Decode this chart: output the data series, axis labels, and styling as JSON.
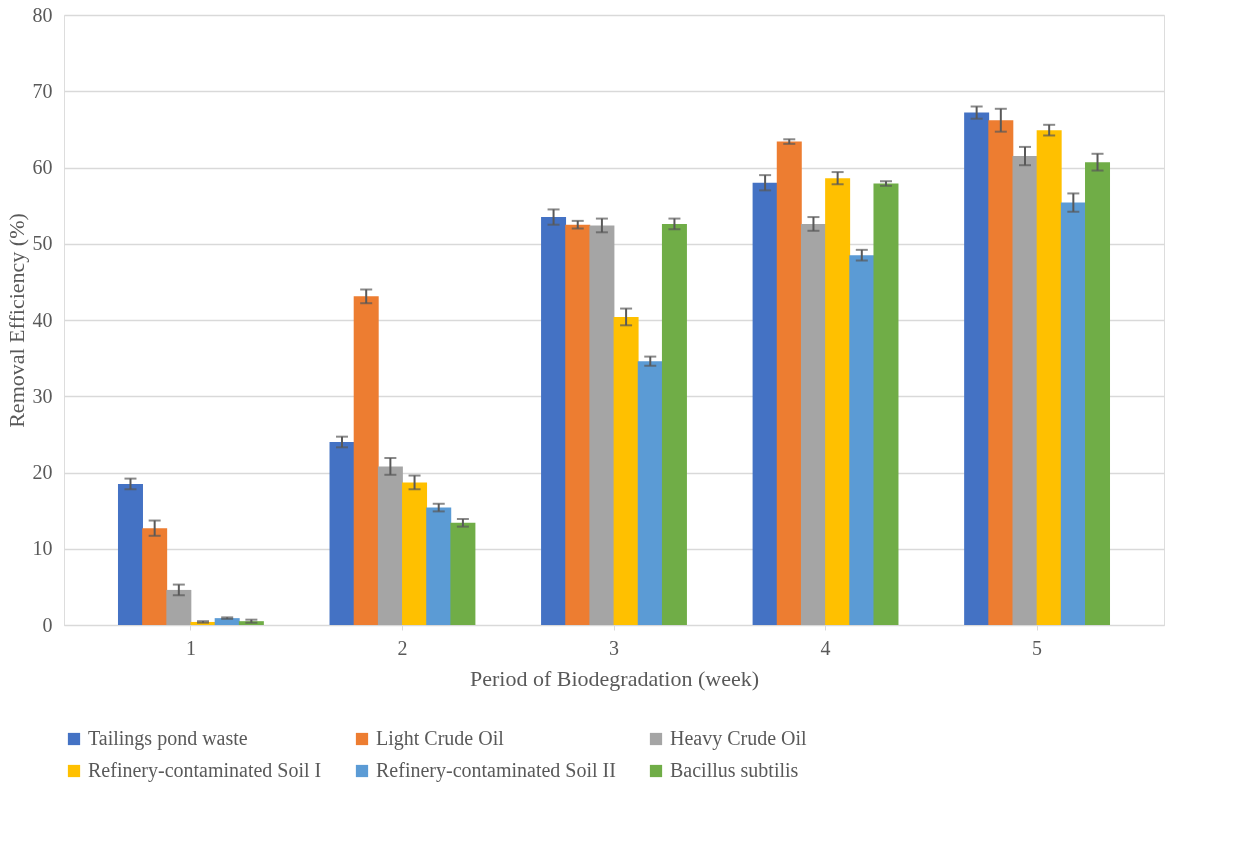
{
  "chart_data": {
    "type": "bar",
    "xlabel": "Period of Biodegradation (week)",
    "ylabel": "Removal Efficiency (%)",
    "categories": [
      "1",
      "2",
      "3",
      "4",
      "5"
    ],
    "series": [
      {
        "name": "Tailings pond waste",
        "color": "#4472c4",
        "values": [
          18.5,
          24.0,
          53.5,
          58.0,
          67.2
        ],
        "errors": [
          0.7,
          0.7,
          1.0,
          1.0,
          0.8
        ]
      },
      {
        "name": "Light Crude Oil",
        "color": "#ed7d31",
        "values": [
          12.7,
          43.1,
          52.5,
          63.4,
          66.2
        ],
        "errors": [
          1.0,
          0.9,
          0.5,
          0.3,
          1.5
        ]
      },
      {
        "name": "Heavy Crude Oil",
        "color": "#a5a5a5",
        "values": [
          4.6,
          20.8,
          52.4,
          52.6,
          61.5
        ],
        "errors": [
          0.7,
          1.1,
          0.9,
          0.9,
          1.2
        ]
      },
      {
        "name": "Refinery-contaminated Soil I",
        "color": "#ffc000",
        "values": [
          0.4,
          18.7,
          40.4,
          58.6,
          64.9
        ],
        "errors": [
          0.1,
          0.9,
          1.1,
          0.8,
          0.7
        ]
      },
      {
        "name": "Refinery-contaminated Soil II",
        "color": "#5b9bd5",
        "values": [
          0.9,
          15.4,
          34.6,
          48.5,
          55.4
        ],
        "errors": [
          0.1,
          0.5,
          0.6,
          0.7,
          1.2
        ]
      },
      {
        "name": "Bacillus subtilis",
        "color": "#70ad47",
        "values": [
          0.5,
          13.4,
          52.6,
          57.9,
          60.7
        ],
        "errors": [
          0.2,
          0.5,
          0.7,
          0.3,
          1.1
        ]
      }
    ],
    "ylim": [
      0,
      80
    ],
    "yticks": [
      0,
      10,
      20,
      30,
      40,
      50,
      60,
      70,
      80
    ],
    "grid": "y",
    "legend": "bottom"
  }
}
